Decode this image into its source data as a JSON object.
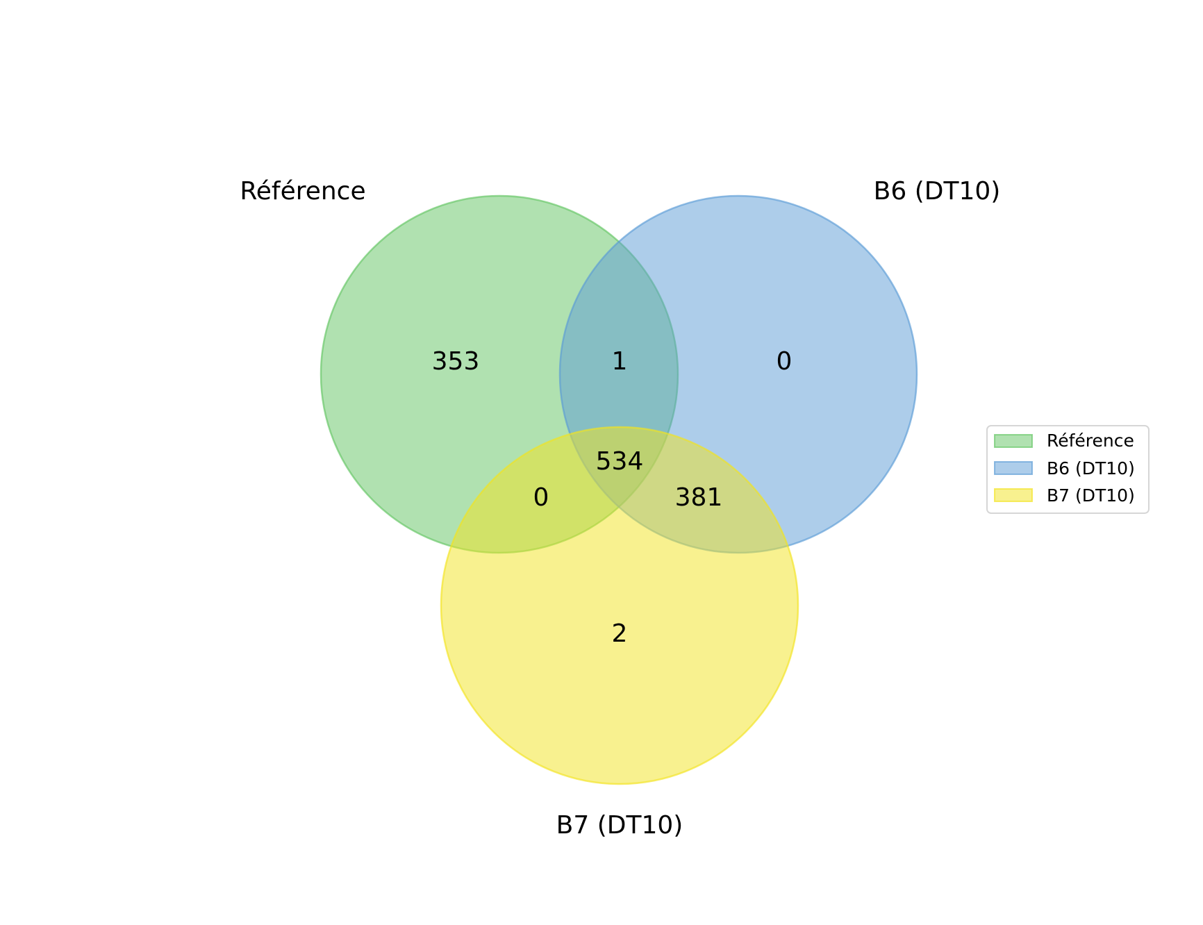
{
  "diagram": {
    "type": "venn3",
    "sets": [
      {
        "key": "A",
        "name": "Référence",
        "color": "#62c462"
      },
      {
        "key": "B",
        "name": "B6 (DT10)",
        "color": "#5b9bd5"
      },
      {
        "key": "C",
        "name": "B7 (DT10)",
        "color": "#f2e41f"
      }
    ],
    "regions": {
      "A_only": "353",
      "AB_only": "1",
      "B_only": "0",
      "ABC": "534",
      "AC_only": "0",
      "BC_only": "381",
      "C_only": "2"
    },
    "legend": {
      "position": "right",
      "entries": [
        "Référence",
        "B6 (DT10)",
        "B7 (DT10)"
      ]
    }
  }
}
